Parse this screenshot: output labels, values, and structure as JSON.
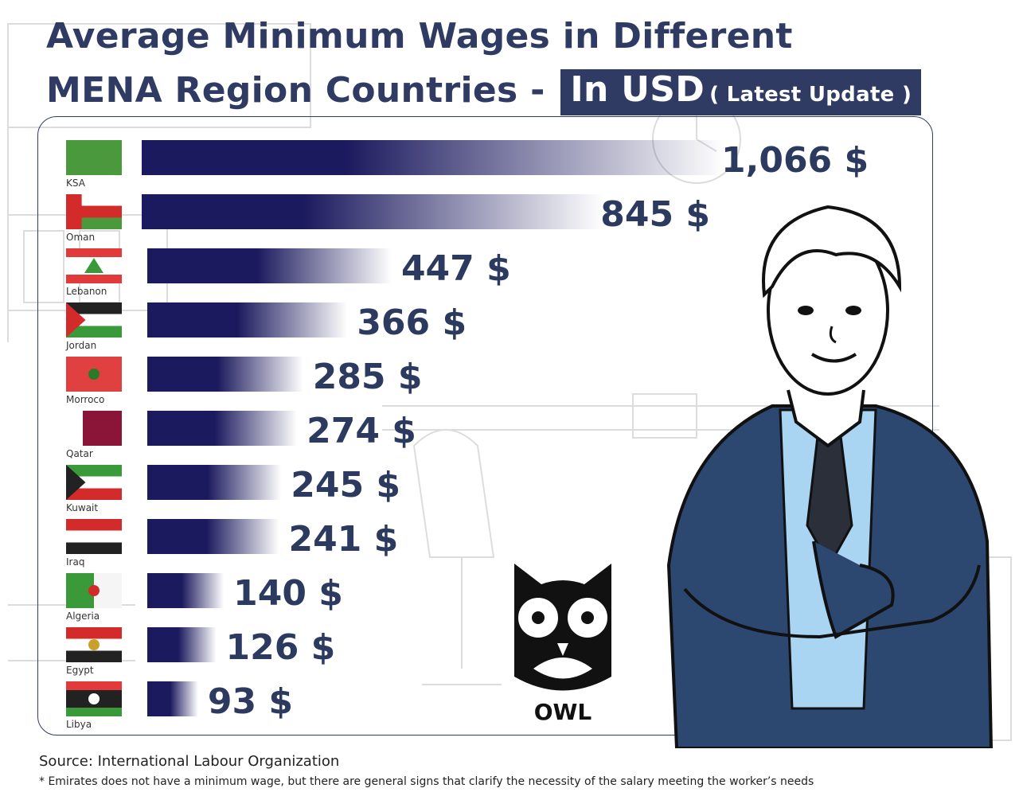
{
  "header": {
    "title_line1": "Average Minimum Wages in Different",
    "title_line2": "MENA Region Countries -",
    "currency_badge": "In USD",
    "update_badge": "( Latest Update )"
  },
  "chart_data": {
    "type": "bar",
    "orientation": "horizontal",
    "title": "Average Minimum Wages in Different MENA Region Countries - In USD ( Latest Update )",
    "unit": "$",
    "categories": [
      "KSA",
      "Oman",
      "Lebanon",
      "Jordan",
      "Morroco",
      "Qatar",
      "Kuwait",
      "Iraq",
      "Algeria",
      "Egypt",
      "Libya"
    ],
    "values": [
      1066,
      845,
      447,
      366,
      285,
      274,
      245,
      241,
      140,
      126,
      93
    ],
    "value_labels": [
      "1,066 $",
      "845 $",
      "447 $",
      "366 $",
      "285 $",
      "274 $",
      "245 $",
      "241 $",
      "140 $",
      "126 $",
      "93 $"
    ],
    "xlim": [
      0,
      1066
    ],
    "grid": false,
    "bar_color": "#1c1a5e"
  },
  "brand": {
    "owl_text": "OWL"
  },
  "footer": {
    "source": "Source: International Labour Organization",
    "note": "* Emirates does not have a minimum wage, but there are general signs that clarify the necessity of the salary meeting the worker’s needs"
  }
}
